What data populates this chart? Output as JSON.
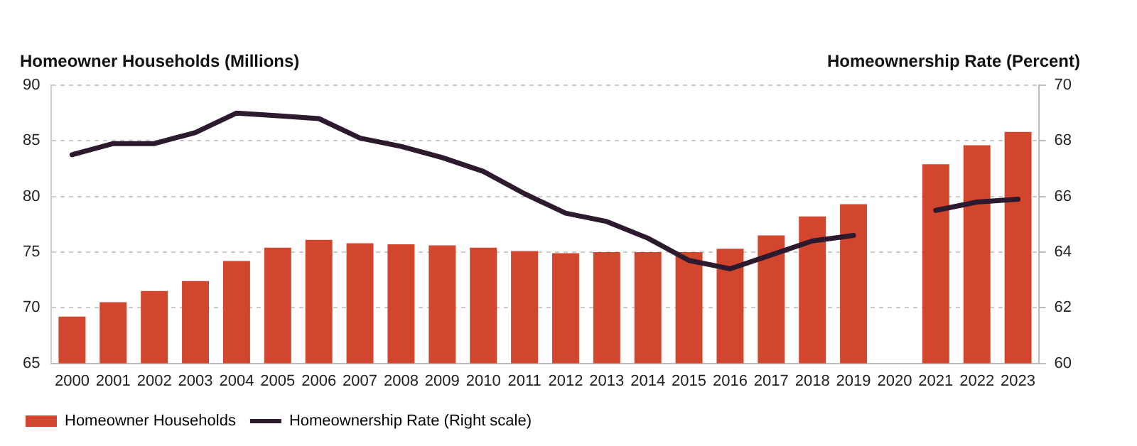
{
  "chart_data": {
    "type": "bar",
    "ylabel": "Homeowner Households (Millions)",
    "y2label": "Homeownership Rate (Percent)",
    "categories": [
      "2000",
      "2001",
      "2002",
      "2003",
      "2004",
      "2005",
      "2006",
      "2007",
      "2008",
      "2009",
      "2010",
      "2011",
      "2012",
      "2013",
      "2014",
      "2015",
      "2016",
      "2017",
      "2018",
      "2019",
      "2020",
      "2021",
      "2022",
      "2023"
    ],
    "series": [
      {
        "name": "Homeowner Households",
        "color": "#d2462e",
        "values": [
          69.2,
          70.5,
          71.5,
          72.4,
          74.2,
          75.4,
          76.1,
          75.8,
          75.7,
          75.6,
          75.4,
          75.1,
          74.9,
          75.0,
          75.0,
          75.0,
          75.3,
          76.5,
          78.2,
          79.3,
          null,
          82.9,
          84.6,
          85.8
        ]
      },
      {
        "name": "Homeownership Rate (Right scale)",
        "type": "line",
        "axis": "y2",
        "color": "#2e1a2e",
        "values": [
          67.5,
          67.9,
          67.9,
          68.3,
          69.0,
          68.9,
          68.8,
          68.1,
          67.8,
          67.4,
          66.9,
          66.1,
          65.4,
          65.1,
          64.5,
          63.7,
          63.4,
          63.9,
          64.4,
          64.6,
          null,
          65.5,
          65.8,
          65.9
        ]
      }
    ],
    "ylim": [
      65,
      90
    ],
    "yticks": [
      65,
      70,
      75,
      80,
      85,
      90
    ],
    "y2lim": [
      60,
      70
    ],
    "y2ticks": [
      60,
      62,
      64,
      66,
      68,
      70
    ],
    "grid": "y",
    "legend": "bottom left",
    "marker": "none",
    "line_style": "solid"
  }
}
